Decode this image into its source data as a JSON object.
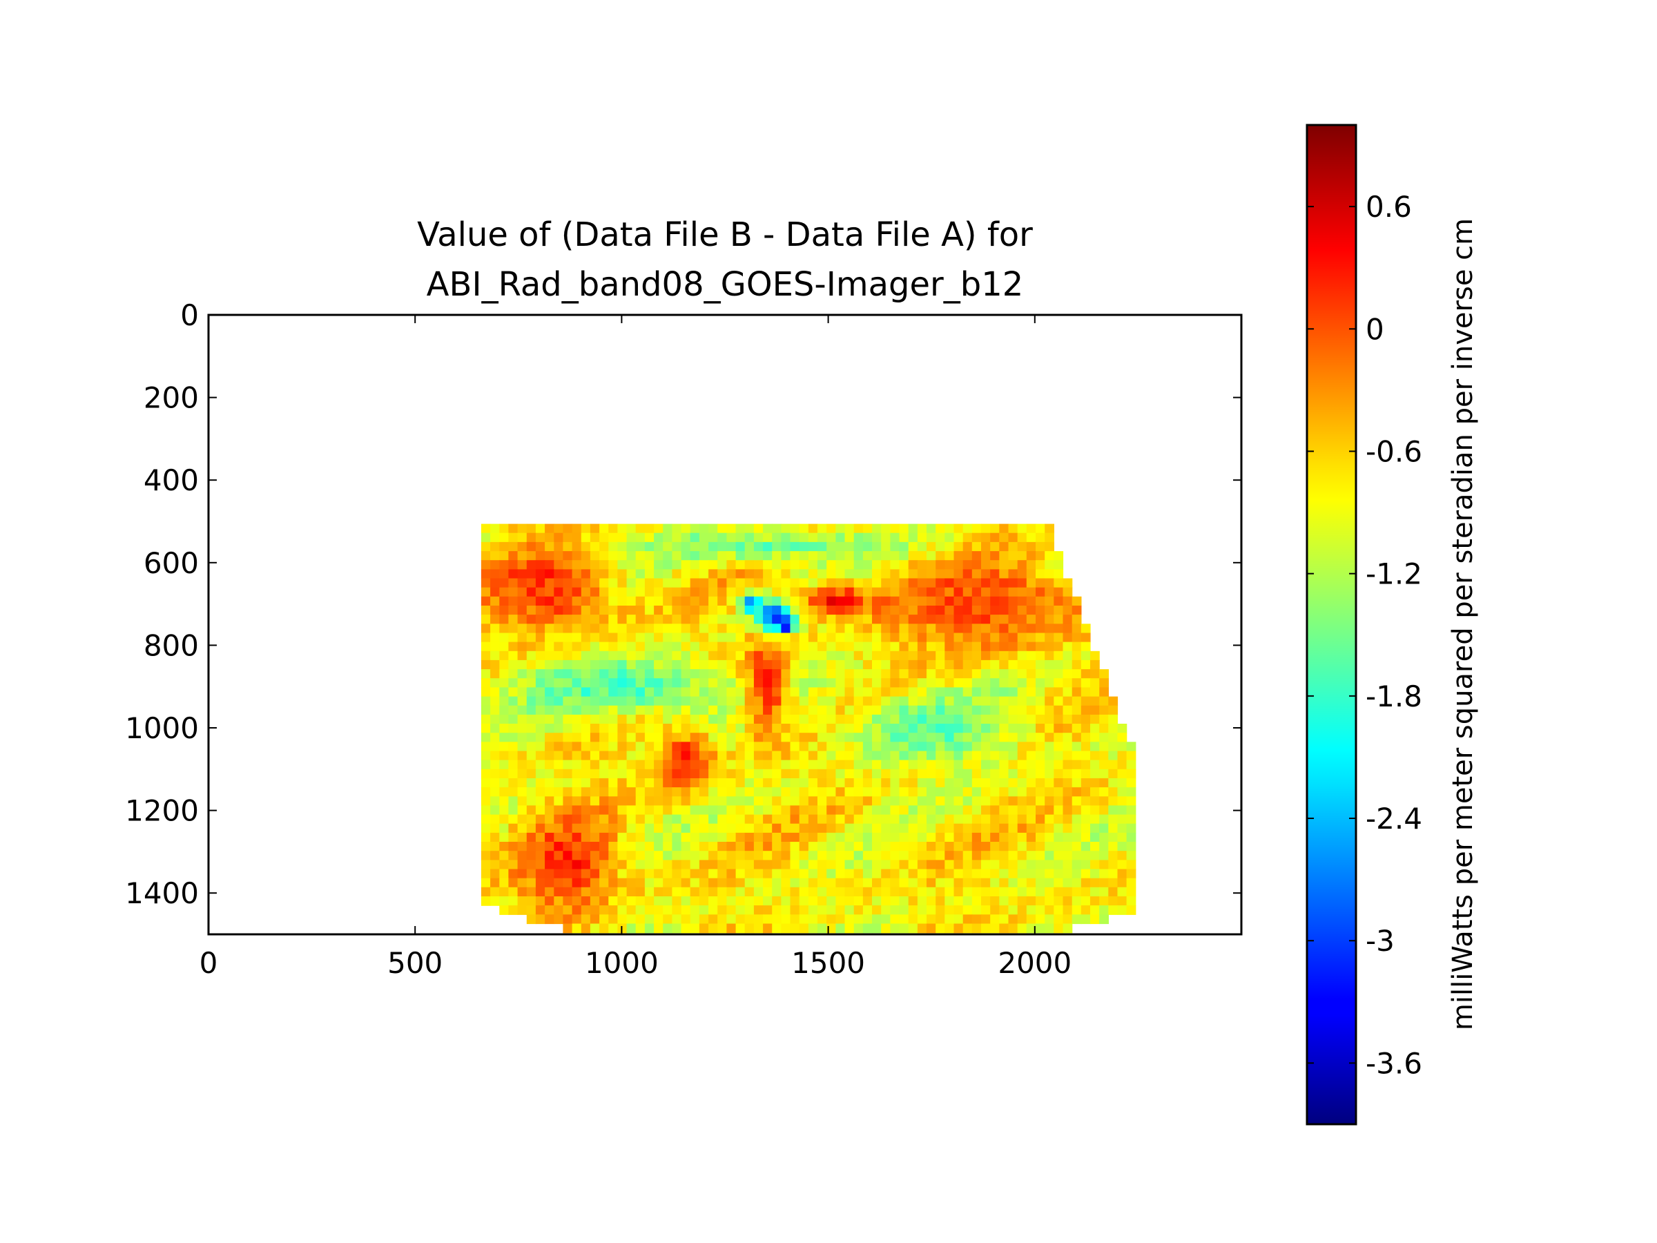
{
  "chart_data": {
    "type": "heatmap",
    "title_lines": [
      "Value of (Data File B - Data File A) for",
      "ABI_Rad_band08_GOES-Imager_b12"
    ],
    "xlabel": "",
    "ylabel": "",
    "xlim": [
      0,
      2500
    ],
    "ylim": [
      1500,
      0
    ],
    "x_ticks": [
      0,
      500,
      1000,
      1500,
      2000
    ],
    "y_ticks": [
      0,
      200,
      400,
      600,
      800,
      1000,
      1200,
      1400
    ],
    "data_region_polygon": [
      [
        660,
        510
      ],
      [
        2035,
        510
      ],
      [
        2245,
        1070
      ],
      [
        2245,
        1440
      ],
      [
        2050,
        1500
      ],
      [
        900,
        1500
      ],
      [
        660,
        1430
      ]
    ],
    "background_value": -0.8,
    "features": [
      {
        "label": "warm band west",
        "cx": 820,
        "cy": 660,
        "rx": 200,
        "ry": 150,
        "value": 0.15
      },
      {
        "label": "warm band east",
        "cx": 1880,
        "cy": 700,
        "rx": 300,
        "ry": 140,
        "value": 0.1
      },
      {
        "label": "warm tongue",
        "cx": 1350,
        "cy": 900,
        "rx": 70,
        "ry": 150,
        "value": 0.45
      },
      {
        "label": "warm streak",
        "cx": 1520,
        "cy": 690,
        "rx": 110,
        "ry": 45,
        "value": 0.35
      },
      {
        "label": "warm patch southwest",
        "cx": 870,
        "cy": 1330,
        "rx": 150,
        "ry": 150,
        "value": 0.2
      },
      {
        "label": "warm patch center",
        "cx": 1160,
        "cy": 1080,
        "rx": 80,
        "ry": 90,
        "value": 0.3
      },
      {
        "label": "cool band",
        "cx": 1000,
        "cy": 900,
        "rx": 330,
        "ry": 90,
        "value": -1.7
      },
      {
        "label": "cool band north",
        "cx": 1350,
        "cy": 560,
        "rx": 450,
        "ry": 50,
        "value": -1.5
      },
      {
        "label": "cool swirl",
        "cx": 1750,
        "cy": 1000,
        "rx": 260,
        "ry": 110,
        "value": -1.6
      },
      {
        "label": "cold spot",
        "cx": 1370,
        "cy": 730,
        "rx": 55,
        "ry": 45,
        "value": -3.0
      },
      {
        "label": "cold spot core",
        "cx": 1395,
        "cy": 750,
        "rx": 25,
        "ry": 22,
        "value": -3.4
      },
      {
        "label": "cold spot west",
        "cx": 1310,
        "cy": 700,
        "rx": 30,
        "ry": 28,
        "value": -2.9
      }
    ],
    "colorbar": {
      "colormap": "jet",
      "vmin": -3.9,
      "vmax": 1.0,
      "ticks": [
        0.6,
        0,
        -0.6,
        -1.2,
        -1.8,
        -2.4,
        -3,
        -3.6
      ],
      "tick_labels": [
        "0.6",
        "0",
        "-0.6",
        "-1.2",
        "-1.8",
        "-2.4",
        "-3",
        "-3.6"
      ],
      "label": "milliWatts per meter squared per steradian per inverse cm"
    }
  }
}
